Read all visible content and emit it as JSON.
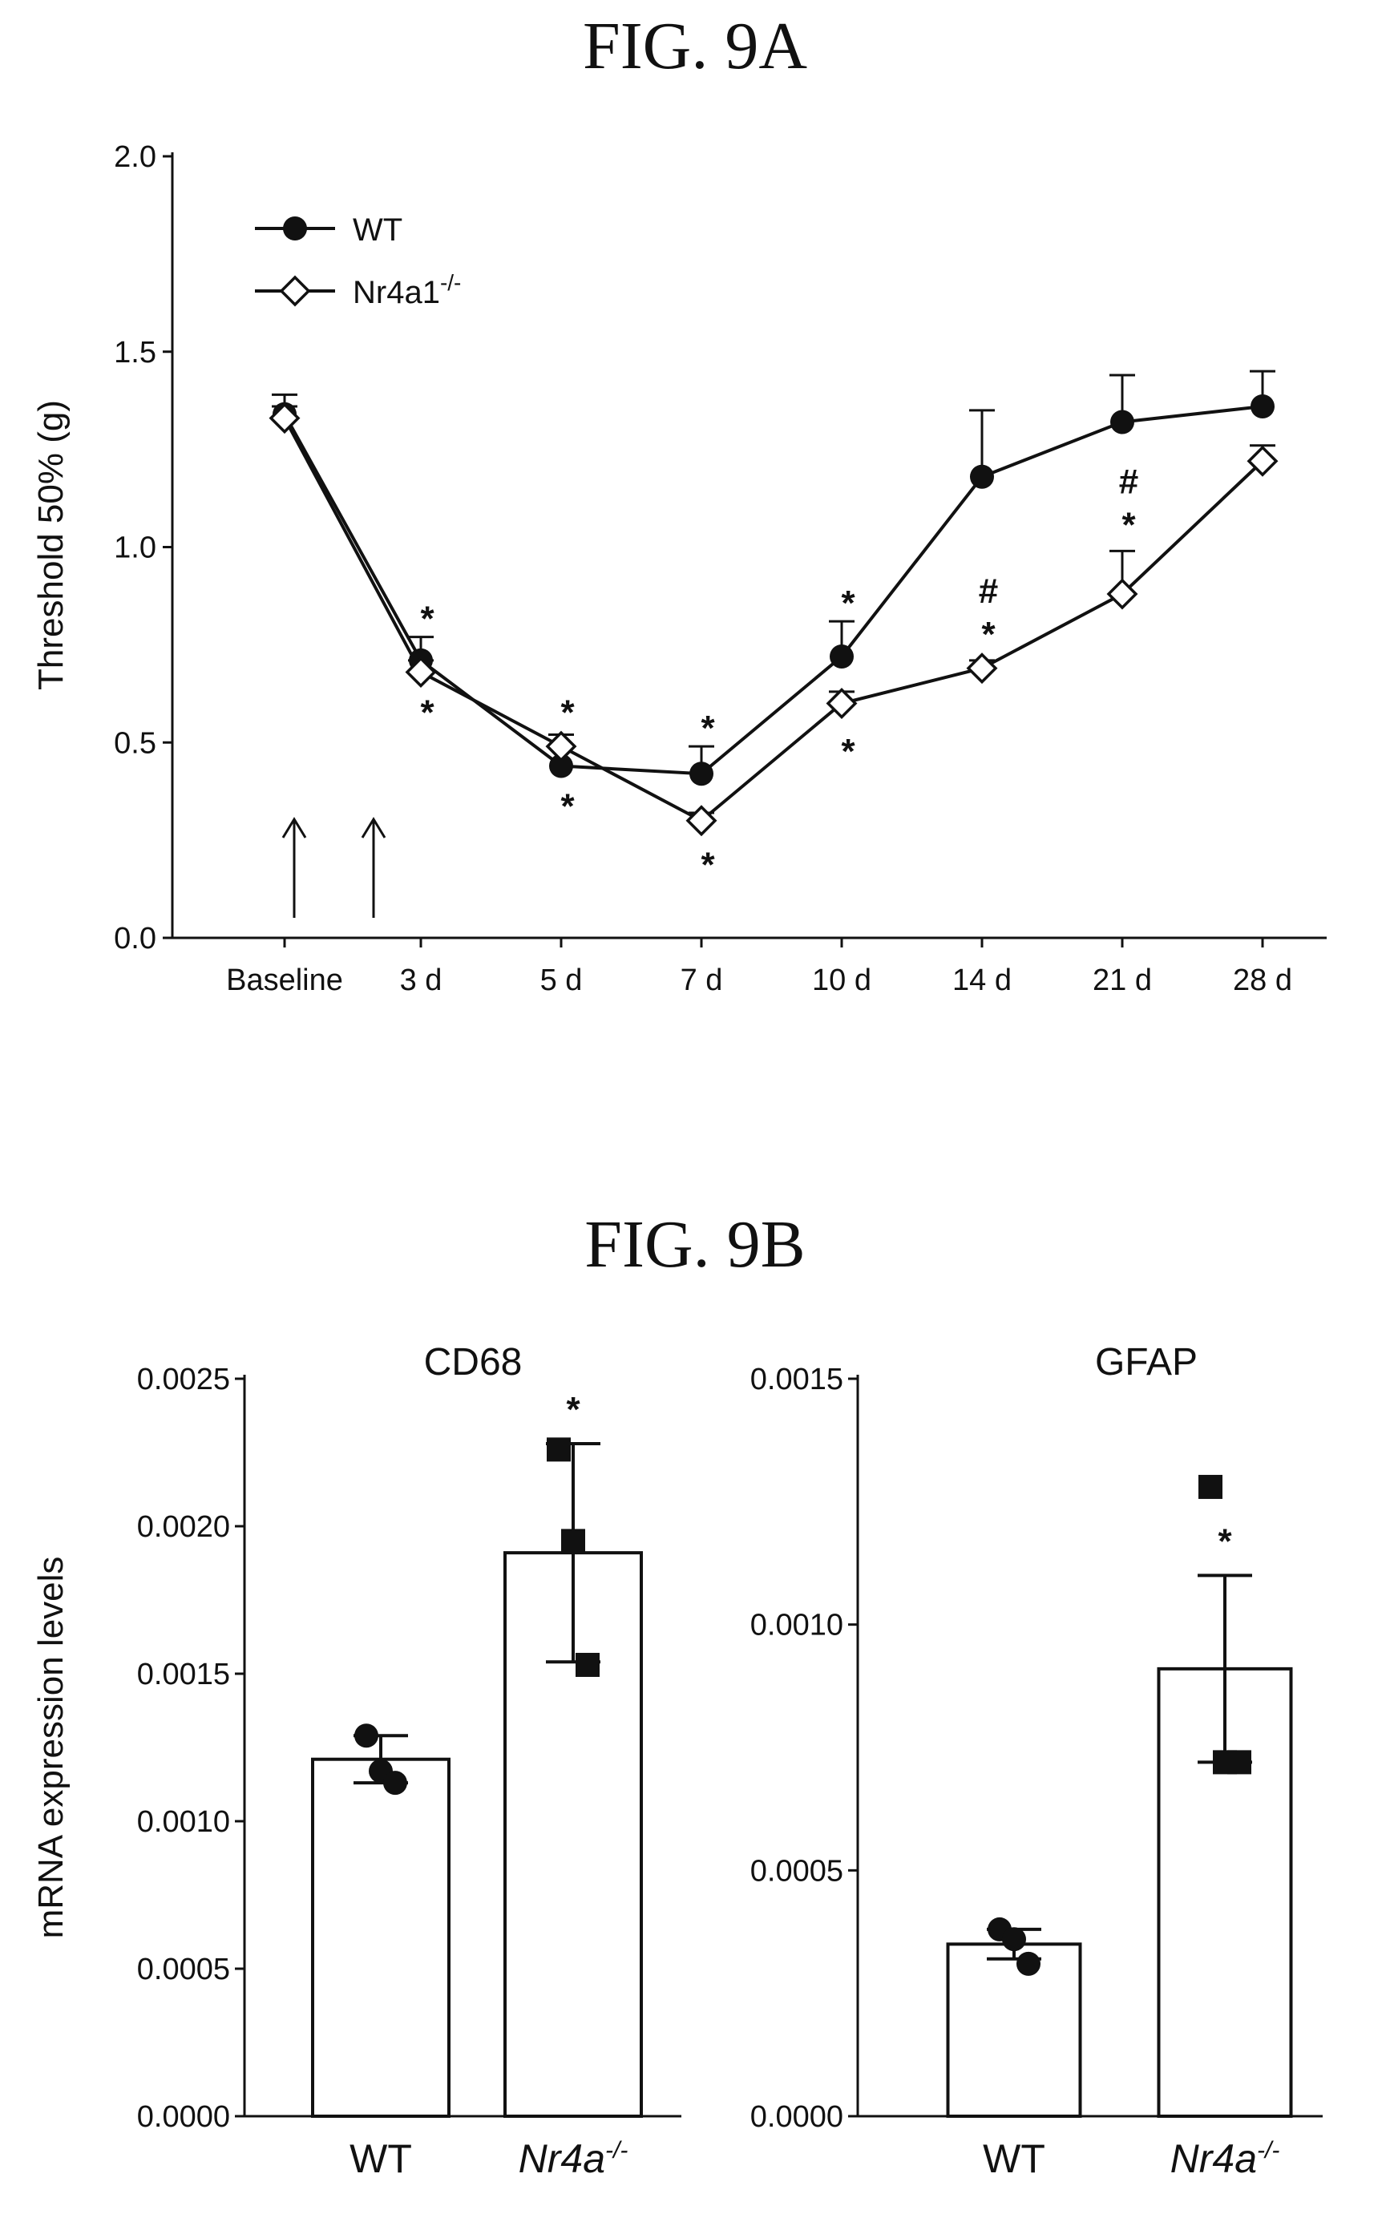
{
  "figures": {
    "fig9a_title": "FIG. 9A",
    "fig9b_title": "FIG. 9B"
  },
  "chart_data": [
    {
      "id": "9A",
      "type": "line",
      "ylabel": "Threshold 50% (g)",
      "ylim": [
        0,
        2.0
      ],
      "yticks": [
        "0.0",
        "0.5",
        "1.0",
        "1.5",
        "2.0"
      ],
      "categories": [
        "Baseline",
        "3 d",
        "5 d",
        "7 d",
        "10 d",
        "14 d",
        "21 d",
        "28 d"
      ],
      "series": [
        {
          "name": "WT",
          "marker": "filled-circle",
          "values": [
            1.34,
            0.71,
            0.44,
            0.42,
            0.72,
            1.18,
            1.32,
            1.36
          ],
          "errors": [
            0.05,
            0.06,
            0.05,
            0.07,
            0.09,
            0.17,
            0.12,
            0.09
          ]
        },
        {
          "name": "Nr4a1",
          "name_sup": "-/-",
          "marker": "open-diamond",
          "values": [
            1.33,
            0.68,
            0.49,
            0.3,
            0.6,
            0.69,
            0.88,
            1.22
          ],
          "errors": [
            0.03,
            0.03,
            0.03,
            0.02,
            0.03,
            0.02,
            0.11,
            0.04
          ]
        }
      ],
      "arrows_at": [
        "Baseline",
        "3 d"
      ],
      "annotations": [
        {
          "cat": 1,
          "text": "*",
          "value": 0.82
        },
        {
          "cat": 1,
          "text": "*",
          "value": 0.58
        },
        {
          "cat": 2,
          "text": "*",
          "value": 0.58
        },
        {
          "cat": 2,
          "text": "*",
          "value": 0.34
        },
        {
          "cat": 3,
          "text": "*",
          "value": 0.54
        },
        {
          "cat": 3,
          "text": "*",
          "value": 0.19
        },
        {
          "cat": 4,
          "text": "*",
          "value": 0.86
        },
        {
          "cat": 4,
          "text": "*",
          "value": 0.48
        },
        {
          "cat": 5,
          "text": "*",
          "value": 0.78
        },
        {
          "cat": 5,
          "text": "#",
          "value": 0.89
        },
        {
          "cat": 6,
          "text": "*",
          "value": 1.06
        },
        {
          "cat": 6,
          "text": "#",
          "value": 1.17
        }
      ]
    },
    {
      "id": "9B-CD68",
      "type": "bar",
      "title": "CD68",
      "ylabel": "mRNA expression levels",
      "ylim": [
        0,
        0.0025
      ],
      "yticks": [
        "0.0000",
        "0.0005",
        "0.0010",
        "0.0015",
        "0.0020",
        "0.0025"
      ],
      "categories": [
        "WT",
        "Nr4a"
      ],
      "category_sup": [
        "",
        "-/-"
      ],
      "values": [
        0.00121,
        0.00191
      ],
      "errors": [
        8e-05,
        0.00037
      ],
      "points": [
        [
          0.00129,
          0.00117,
          0.00113
        ],
        [
          0.00226,
          0.00195,
          0.00153
        ]
      ],
      "significance": [
        "",
        "*"
      ]
    },
    {
      "id": "9B-GFAP",
      "type": "bar",
      "title": "GFAP",
      "ylabel": "",
      "ylim": [
        0,
        0.0015
      ],
      "yticks": [
        "0.0000",
        "0.0005",
        "0.0010",
        "0.0015"
      ],
      "categories": [
        "WT",
        "Nr4a"
      ],
      "category_sup": [
        "",
        "-/-"
      ],
      "values": [
        0.00035,
        0.00091
      ],
      "errors": [
        3e-05,
        0.00019
      ],
      "points": [
        [
          0.00038,
          0.00036,
          0.00031
        ],
        [
          0.00128,
          0.00072,
          0.00072
        ]
      ],
      "significance": [
        "",
        "*"
      ]
    }
  ]
}
